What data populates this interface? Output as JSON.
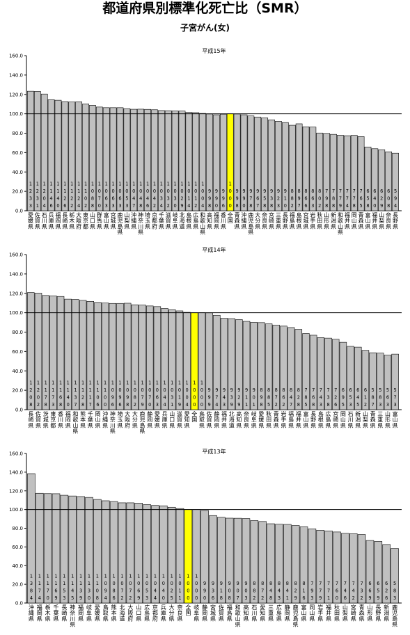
{
  "page": {
    "title": "都道府県別標準化死亡比（SMR）",
    "subtitle": "子宮がん(女)"
  },
  "colors": {
    "bar": "#c0c0c0",
    "highlight": "#ffff00",
    "stroke": "#000000"
  },
  "chart_data": [
    {
      "type": "bar",
      "title": "平成15年",
      "ylim": [
        0,
        160
      ],
      "yticks": [
        "0.0",
        "20.0",
        "40.0",
        "60.0",
        "80.0",
        "100.0",
        "120.0",
        "140.0",
        "160.0"
      ],
      "reference_line": 100,
      "highlight": "全国",
      "categories": [
        "愛媛県",
        "佐賀県",
        "石川県",
        "兵庫県",
        "福岡県",
        "長崎県",
        "栃木県",
        "大阪府",
        "東京都",
        "山口県",
        "群馬県",
        "富山県",
        "宮城県",
        "鹿児島県",
        "山梨県",
        "沖縄県",
        "神奈川県",
        "埼玉県",
        "京都府",
        "千葉県",
        "滋賀県",
        "岐阜県",
        "北海道",
        "島根県",
        "広島県",
        "和歌山県",
        "高知県",
        "福岡県",
        "香川県",
        "全国",
        "青森県",
        "沖縄県",
        "鹿児島県",
        "大分県",
        "奈良県",
        "宮崎県",
        "三重県",
        "長野県",
        "福島県",
        "島根県",
        "宮城県",
        "岩手県",
        "秋田県",
        "山形県",
        "新潟県",
        "和歌山県",
        "福井県",
        "岡山県",
        "青森県",
        "富山県",
        "福井県",
        "山梨県",
        "奈良県",
        "長野県"
      ],
      "values": [
        123.3,
        123.1,
        120.4,
        114.6,
        114.0,
        112.6,
        112.2,
        112.4,
        110.2,
        108.8,
        107.0,
        106.3,
        106.3,
        106.3,
        105.3,
        104.7,
        104.8,
        104.6,
        104.2,
        103.4,
        103.2,
        103.0,
        102.9,
        101.4,
        101.2,
        100.4,
        99.8,
        99.0,
        99.6,
        100.0,
        99.8,
        99.0,
        97.8,
        96.7,
        95.8,
        93.8,
        92.3,
        91.0,
        88.2,
        89.7,
        86.6,
        86.3,
        80.2,
        79.8,
        78.8,
        77.9,
        77.4,
        77.8,
        76.5,
        65.8,
        64.0,
        62.9,
        60.8,
        59.4
      ],
      "value_labels": [
        "123.3",
        "123.1",
        "120.4",
        "114.6",
        "114.0",
        "112.6",
        "112.2",
        "112.4",
        "110.2",
        "108.8",
        "107.0",
        "106.3",
        "106.3",
        "106.3",
        "105.3",
        "104.7",
        "104.8",
        "104.6",
        "104.2",
        "103.4",
        "103.2",
        "103.0",
        "102.9",
        "101.4",
        "101.2",
        "100.4",
        "99.8",
        "99.0",
        "99.6",
        "100.0",
        "99.8",
        "99.0",
        "97.8",
        "96.7",
        "95.8",
        "93.8",
        "92.3",
        "91.0",
        "88.2",
        "89.7",
        "86.6",
        "86.3",
        "80.2",
        "79.8",
        "78.8",
        "77.9",
        "77.4",
        "77.8",
        "76.5",
        "65.8",
        "64.0",
        "62.9",
        "60.8",
        "59.4"
      ]
    },
    {
      "type": "bar",
      "title": "平成14年",
      "ylim": [
        0,
        160
      ],
      "yticks": [
        "0.0",
        "20.0",
        "40.0",
        "60.0",
        "80.0",
        "100.0",
        "120.0",
        "140.0",
        "160.0"
      ],
      "reference_line": 100,
      "highlight": "全国",
      "categories": [
        "長崎県",
        "佐賀県",
        "茨城県",
        "東京都",
        "香川県",
        "福岡県",
        "和歌山県",
        "熊本県",
        "千葉県",
        "岡山県",
        "沖縄県",
        "神奈川県",
        "埼玉県",
        "大阪府",
        "大分県",
        "鹿児島県",
        "静岡県",
        "愛媛県",
        "兵庫県",
        "山口県",
        "滋賀県",
        "愛知県",
        "全国",
        "鳥取県",
        "佐賀県",
        "静岡県",
        "福井県",
        "北海道",
        "高知県",
        "奈良県",
        "岐阜県",
        "愛媛県",
        "秋田県",
        "青森県",
        "岩手県",
        "福島県",
        "福井県",
        "富山県",
        "長野県",
        "島根県",
        "広島県",
        "宮崎県",
        "岡山県",
        "石川県",
        "新潟県",
        "山梨県",
        "青森県",
        "三重県",
        "山形県",
        "富山県"
      ],
      "values": [
        120.8,
        120.2,
        117.8,
        117.3,
        116.8,
        114.0,
        113.7,
        112.8,
        111.7,
        110.6,
        110.0,
        109.6,
        109.6,
        109.8,
        108.2,
        107.9,
        107.0,
        106.3,
        104.4,
        103.1,
        101.9,
        100.4,
        100.0,
        100.0,
        99.9,
        97.4,
        94.3,
        93.9,
        92.9,
        91.1,
        90.1,
        89.8,
        88.5,
        87.2,
        86.2,
        84.7,
        82.8,
        78.5,
        76.8,
        74.3,
        73.8,
        72.6,
        69.5,
        65.3,
        64.5,
        61.2,
        58.7,
        58.3,
        56.3,
        57.3
      ],
      "value_labels": [
        "120.8",
        "120.2",
        "117.8",
        "117.3",
        "116.8",
        "114.0",
        "113.7",
        "112.8",
        "111.7",
        "110.6",
        "110.0",
        "109.6",
        "109.6",
        "109.8",
        "108.2",
        "107.9",
        "107.0",
        "106.3",
        "104.4",
        "103.1",
        "101.9",
        "100.4",
        "100.0",
        "100.0",
        "99.9",
        "97.4",
        "94.3",
        "93.9",
        "92.9",
        "91.1",
        "90.1",
        "89.8",
        "88.5",
        "87.2",
        "86.2",
        "84.7",
        "82.8",
        "78.5",
        "76.8",
        "74.3",
        "73.8",
        "72.6",
        "69.5",
        "65.3",
        "64.5",
        "61.2",
        "58.7",
        "58.3",
        "56.3",
        "57.3"
      ]
    },
    {
      "type": "bar",
      "title": "平成13年",
      "ylim": [
        0,
        160
      ],
      "yticks": [
        "0.0",
        "20.0",
        "40.0",
        "60.0",
        "80.0",
        "100.0",
        "120.0",
        "140.0",
        "160.0"
      ],
      "reference_line": 100,
      "highlight": "全国",
      "categories": [
        "沖縄県",
        "福岡県",
        "栃木県",
        "千葉県",
        "長崎県",
        "神奈川県",
        "福岡県",
        "岐阜県",
        "愛媛県",
        "鳥取県",
        "熊本県",
        "北海道",
        "大阪府",
        "山口県",
        "広島県",
        "京都府",
        "兵庫県",
        "大分県",
        "奈良県",
        "全国",
        "岐阜県",
        "静岡県",
        "宮城県",
        "佐賀県",
        "福島県",
        "和歌山県",
        "高知県",
        "石川県",
        "愛知県",
        "三重県",
        "広島県",
        "静岡県",
        "鹿児島県",
        "富山県",
        "岡山県",
        "岩手県",
        "福井県",
        "秋田県",
        "山梨県",
        "宮崎県",
        "青森県",
        "山形県",
        "長野県",
        "新潟県",
        "鹿児島県"
      ],
      "values": [
        138.4,
        117.4,
        117.0,
        116.9,
        115.3,
        114.5,
        113.9,
        113.0,
        110.8,
        109.4,
        108.6,
        107.2,
        107.2,
        106.9,
        105.3,
        104.4,
        104.0,
        102.5,
        101.1,
        100.0,
        100.0,
        99.0,
        93.6,
        91.8,
        90.8,
        90.7,
        90.3,
        88.2,
        87.2,
        84.8,
        84.3,
        84.1,
        82.9,
        81.6,
        79.3,
        77.9,
        77.1,
        76.0,
        74.6,
        74.2,
        73.2,
        66.9,
        65.9,
        62.6,
        58.3
      ],
      "value_labels": [
        "138.4",
        "117.4",
        "117.0",
        "116.9",
        "115.3",
        "114.5",
        "113.9",
        "113.0",
        "110.8",
        "109.4",
        "108.6",
        "107.2",
        "107.2",
        "106.9",
        "105.3",
        "104.4",
        "104.0",
        "102.5",
        "101.1",
        "100.0",
        "100.0",
        "99.0",
        "93.6",
        "91.8",
        "90.8",
        "90.7",
        "90.3",
        "88.2",
        "87.2",
        "84.8",
        "84.3",
        "84.1",
        "82.9",
        "81.6",
        "79.3",
        "77.9",
        "77.1",
        "76.0",
        "74.6",
        "74.2",
        "73.2",
        "66.9",
        "65.9",
        "62.6",
        "58.3"
      ]
    }
  ]
}
